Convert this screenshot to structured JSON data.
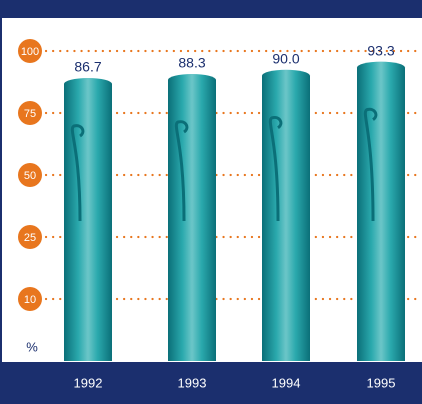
{
  "chart_data": {
    "type": "bar",
    "y_label": "%",
    "categories": [
      "1992",
      "1993",
      "1994",
      "1995"
    ],
    "values": [
      86.7,
      88.3,
      90.0,
      93.3
    ],
    "value_labels": [
      "86.7",
      "88.3",
      "90.0",
      "93.3"
    ],
    "color": "#14979c",
    "ylim": [
      0,
      100
    ],
    "yticks": [
      100,
      75,
      50,
      25,
      10
    ],
    "grid": true
  }
}
